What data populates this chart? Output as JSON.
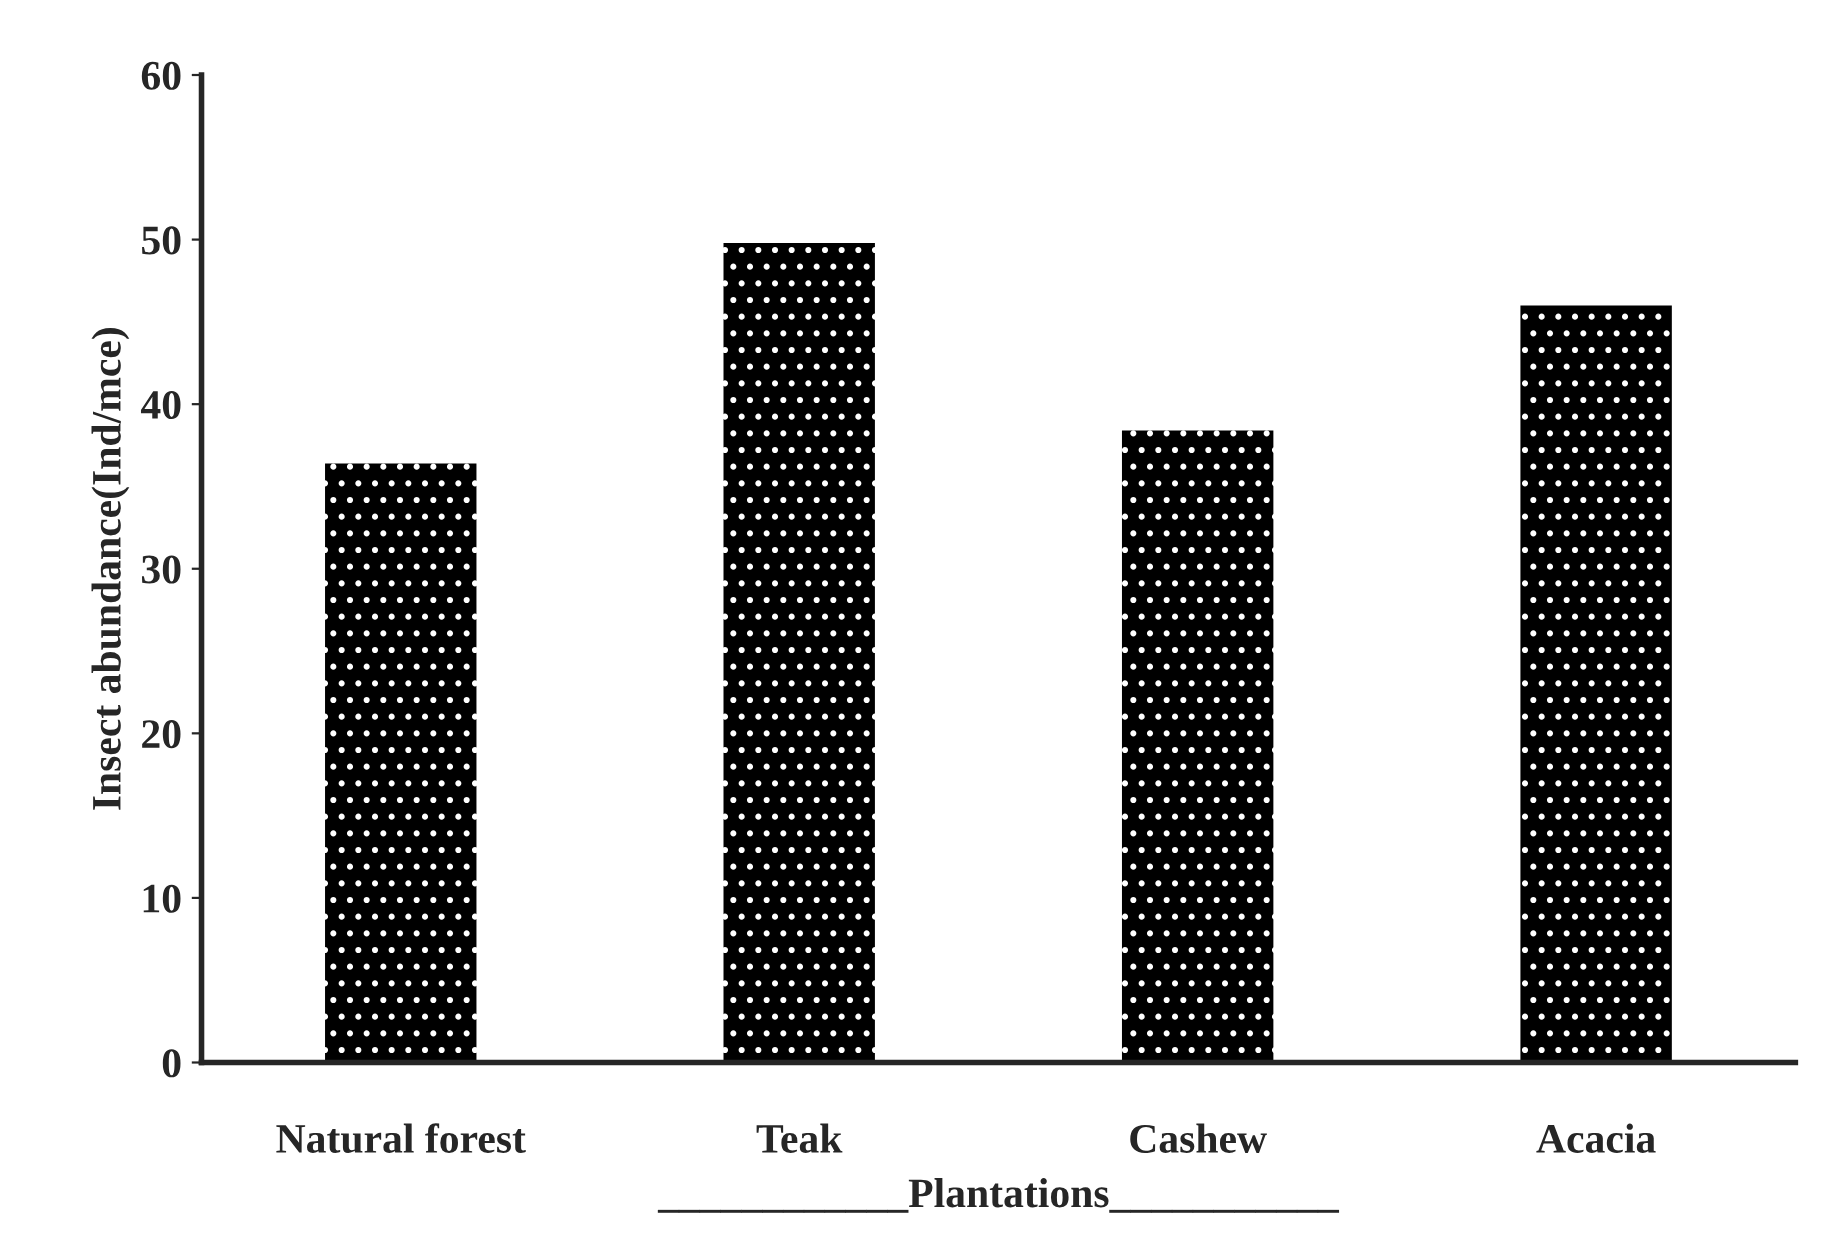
{
  "chart_data": {
    "type": "bar",
    "xlabel": "____________Plantations___________",
    "ylabel": "Insect abundance(Ind/mce)",
    "categories": [
      "Natural forest",
      "Teak",
      "Cashew",
      "Acacia"
    ],
    "values": [
      36.4,
      49.8,
      38.4,
      46.0
    ],
    "color": "#000000",
    "ylim": [
      0,
      60
    ],
    "yticks": [
      0,
      10,
      20,
      30,
      40,
      50,
      60
    ],
    "grid": false
  }
}
